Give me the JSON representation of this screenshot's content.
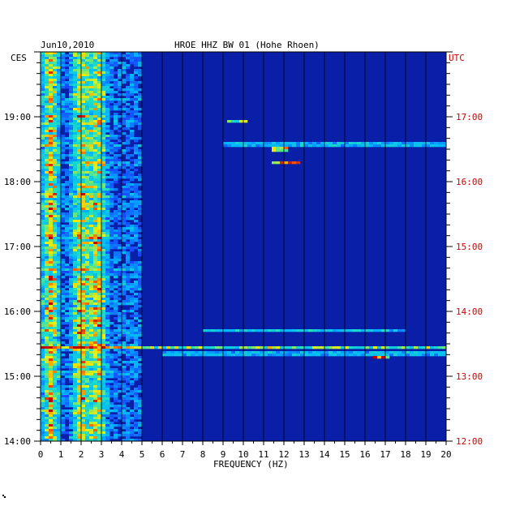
{
  "chart_data": {
    "type": "heatmap",
    "title": "HROE HHZ BW 01 (Hohe Rhoen)",
    "date": "Jun10,2010",
    "xlabel": "FREQUENCY (HZ)",
    "left_timezone": "CES",
    "right_timezone": "UTC",
    "xlim": [
      0,
      20
    ],
    "x_ticks": [
      "0",
      "1",
      "2",
      "3",
      "4",
      "5",
      "6",
      "7",
      "8",
      "9",
      "10",
      "11",
      "12",
      "13",
      "14",
      "15",
      "16",
      "17",
      "18",
      "19",
      "20"
    ],
    "time_range_hours": [
      14.0,
      20.0
    ],
    "left_time_ticks": [
      {
        "label": "14:00",
        "hour": 14
      },
      {
        "label": "15:00",
        "hour": 15
      },
      {
        "label": "16:00",
        "hour": 16
      },
      {
        "label": "17:00",
        "hour": 17
      },
      {
        "label": "18:00",
        "hour": 18
      },
      {
        "label": "19:00",
        "hour": 19
      }
    ],
    "right_time_ticks": [
      {
        "label": "12:00",
        "hour": 14
      },
      {
        "label": "13:00",
        "hour": 15
      },
      {
        "label": "14:00",
        "hour": 16
      },
      {
        "label": "15:00",
        "hour": 17
      },
      {
        "label": "16:00",
        "hour": 18
      },
      {
        "label": "17:00",
        "hour": 19
      }
    ],
    "background_color": "#0a1fa8",
    "color_scale": [
      "#0010a0",
      "#1a3cff",
      "#00b4ff",
      "#20e0c0",
      "#f0f000",
      "#ff6000",
      "#c00000"
    ],
    "low_frequency_energy_band_hz": [
      0,
      5
    ],
    "hotspot_frequencies_hz": [
      0.5,
      2.0,
      2.8
    ],
    "noise_events": [
      {
        "hour": 15.45,
        "f_start": 0,
        "f_end": 20,
        "intensity": 0.55
      },
      {
        "hour": 15.35,
        "f_start": 6,
        "f_end": 20,
        "intensity": 0.3
      },
      {
        "hour": 15.29,
        "f_start": 16.5,
        "f_end": 17.2,
        "intensity": 0.9
      },
      {
        "hour": 15.7,
        "f_start": 8,
        "f_end": 18,
        "intensity": 0.35
      },
      {
        "hour": 18.5,
        "f_start": 11.5,
        "f_end": 12.2,
        "intensity": 0.8
      },
      {
        "hour": 18.3,
        "f_start": 11.5,
        "f_end": 12.8,
        "intensity": 0.85
      },
      {
        "hour": 18.93,
        "f_start": 9.2,
        "f_end": 10.2,
        "intensity": 0.5
      },
      {
        "hour": 18.58,
        "f_start": 9,
        "f_end": 20,
        "intensity": 0.3
      }
    ]
  }
}
